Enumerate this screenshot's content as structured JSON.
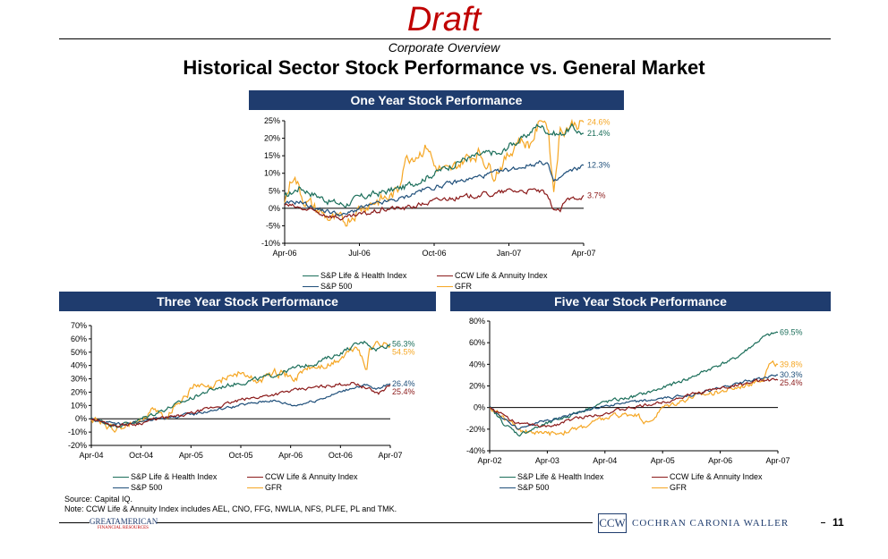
{
  "header": {
    "draft": "Draft",
    "subtitle": "Corporate Overview",
    "title": "Historical Sector Stock Performance vs. General Market"
  },
  "colors": {
    "banner": "#1f3c6e",
    "sp_life_health": "#1b6e5a",
    "ccw_life_annuity": "#8b1a1a",
    "sp500": "#1f4f7a",
    "gfr": "#f5a623"
  },
  "chart_data": [
    {
      "type": "line",
      "title": "One Year Stock Performance",
      "x_ticks": [
        "Apr-06",
        "Jul-06",
        "Oct-06",
        "Jan-07",
        "Apr-07"
      ],
      "y_ticks": [
        "-10%",
        "-5%",
        "0%",
        "5%",
        "10%",
        "15%",
        "20%",
        "25%"
      ],
      "ylim": [
        -10,
        25
      ],
      "grid": false,
      "legend_position": "bottom",
      "series": [
        {
          "name": "S&P Life & Health Index",
          "color": "#1b6e5a",
          "end_label": "21.4%",
          "end": 21.4,
          "vol": 1.2,
          "anchors": [
            [
              0,
              3
            ],
            [
              0.05,
              6
            ],
            [
              0.1,
              4
            ],
            [
              0.15,
              2
            ],
            [
              0.2,
              1
            ],
            [
              0.25,
              3
            ],
            [
              0.3,
              4
            ],
            [
              0.35,
              5
            ],
            [
              0.4,
              6
            ],
            [
              0.45,
              8
            ],
            [
              0.5,
              10
            ],
            [
              0.55,
              12
            ],
            [
              0.6,
              14
            ],
            [
              0.65,
              15
            ],
            [
              0.7,
              16
            ],
            [
              0.72,
              15
            ],
            [
              0.75,
              18
            ],
            [
              0.8,
              20
            ],
            [
              0.85,
              24
            ],
            [
              0.88,
              22
            ],
            [
              0.92,
              21
            ],
            [
              0.96,
              23
            ],
            [
              1,
              21.4
            ]
          ]
        },
        {
          "name": "CCW Life & Annuity Index",
          "color": "#8b1a1a",
          "end_label": "3.7%",
          "end": 3.7,
          "vol": 0.9,
          "anchors": [
            [
              0,
              1
            ],
            [
              0.05,
              0
            ],
            [
              0.1,
              -1
            ],
            [
              0.15,
              -2
            ],
            [
              0.2,
              -3
            ],
            [
              0.25,
              -2
            ],
            [
              0.3,
              -1
            ],
            [
              0.35,
              0
            ],
            [
              0.4,
              0
            ],
            [
              0.45,
              1
            ],
            [
              0.5,
              2
            ],
            [
              0.55,
              3
            ],
            [
              0.6,
              3
            ],
            [
              0.65,
              4
            ],
            [
              0.7,
              4
            ],
            [
              0.75,
              5
            ],
            [
              0.8,
              5
            ],
            [
              0.85,
              5
            ],
            [
              0.87,
              4
            ],
            [
              0.9,
              0
            ],
            [
              0.92,
              -1
            ],
            [
              0.94,
              2
            ],
            [
              0.97,
              3
            ],
            [
              1,
              3.7
            ]
          ]
        },
        {
          "name": "S&P 500",
          "color": "#1f4f7a",
          "end_label": "12.3%",
          "end": 12.3,
          "vol": 0.8,
          "anchors": [
            [
              0,
              1
            ],
            [
              0.05,
              2
            ],
            [
              0.1,
              0
            ],
            [
              0.15,
              -1
            ],
            [
              0.2,
              -2
            ],
            [
              0.25,
              0
            ],
            [
              0.3,
              1
            ],
            [
              0.35,
              2
            ],
            [
              0.4,
              3
            ],
            [
              0.45,
              5
            ],
            [
              0.5,
              6
            ],
            [
              0.55,
              7
            ],
            [
              0.6,
              8
            ],
            [
              0.65,
              9
            ],
            [
              0.7,
              10
            ],
            [
              0.75,
              11
            ],
            [
              0.8,
              12
            ],
            [
              0.85,
              13
            ],
            [
              0.88,
              13
            ],
            [
              0.9,
              7
            ],
            [
              0.94,
              10
            ],
            [
              0.97,
              11
            ],
            [
              1,
              12.3
            ]
          ]
        },
        {
          "name": "GFR",
          "color": "#f5a623",
          "end_label": "24.6%",
          "end": 24.6,
          "vol": 2.2,
          "anchors": [
            [
              0,
              2
            ],
            [
              0.03,
              10
            ],
            [
              0.06,
              3
            ],
            [
              0.1,
              0
            ],
            [
              0.15,
              -3
            ],
            [
              0.2,
              -4
            ],
            [
              0.25,
              0
            ],
            [
              0.3,
              2
            ],
            [
              0.35,
              3
            ],
            [
              0.38,
              5
            ],
            [
              0.4,
              14
            ],
            [
              0.45,
              16
            ],
            [
              0.48,
              18
            ],
            [
              0.5,
              12
            ],
            [
              0.55,
              10
            ],
            [
              0.6,
              14
            ],
            [
              0.65,
              16
            ],
            [
              0.7,
              10
            ],
            [
              0.75,
              15
            ],
            [
              0.78,
              20
            ],
            [
              0.82,
              18
            ],
            [
              0.86,
              26
            ],
            [
              0.88,
              24
            ],
            [
              0.9,
              5
            ],
            [
              0.92,
              22
            ],
            [
              0.96,
              24
            ],
            [
              1,
              24.6
            ]
          ]
        }
      ]
    },
    {
      "type": "line",
      "title": "Three Year Stock Performance",
      "x_ticks": [
        "Apr-04",
        "Oct-04",
        "Apr-05",
        "Oct-05",
        "Apr-06",
        "Oct-06",
        "Apr-07"
      ],
      "y_ticks": [
        "-20%",
        "-10%",
        "0%",
        "10%",
        "20%",
        "30%",
        "40%",
        "50%",
        "60%",
        "70%"
      ],
      "ylim": [
        -20,
        70
      ],
      "grid": false,
      "legend_position": "bottom",
      "series": [
        {
          "name": "S&P Life & Health Index",
          "color": "#1b6e5a",
          "end_label": "56.3%",
          "end": 56.3,
          "vol": 2,
          "anchors": [
            [
              0,
              0
            ],
            [
              0.08,
              -5
            ],
            [
              0.15,
              -2
            ],
            [
              0.22,
              5
            ],
            [
              0.3,
              12
            ],
            [
              0.38,
              20
            ],
            [
              0.45,
              25
            ],
            [
              0.52,
              28
            ],
            [
              0.6,
              32
            ],
            [
              0.68,
              38
            ],
            [
              0.75,
              42
            ],
            [
              0.82,
              48
            ],
            [
              0.88,
              55
            ],
            [
              0.92,
              58
            ],
            [
              0.95,
              52
            ],
            [
              1,
              56.3
            ]
          ]
        },
        {
          "name": "CCW Life & Annuity Index",
          "color": "#8b1a1a",
          "end_label": "25.4%",
          "end": 25.4,
          "vol": 1.5,
          "anchors": [
            [
              0,
              0
            ],
            [
              0.08,
              -5
            ],
            [
              0.15,
              -4
            ],
            [
              0.22,
              0
            ],
            [
              0.3,
              2
            ],
            [
              0.4,
              8
            ],
            [
              0.5,
              14
            ],
            [
              0.6,
              18
            ],
            [
              0.7,
              22
            ],
            [
              0.8,
              25
            ],
            [
              0.88,
              27
            ],
            [
              0.93,
              22
            ],
            [
              0.96,
              19
            ],
            [
              1,
              25.4
            ]
          ]
        },
        {
          "name": "S&P 500",
          "color": "#1f4f7a",
          "end_label": "26.4%",
          "end": 26.4,
          "vol": 1.3,
          "anchors": [
            [
              0,
              0
            ],
            [
              0.08,
              -4
            ],
            [
              0.15,
              -3
            ],
            [
              0.22,
              0
            ],
            [
              0.3,
              2
            ],
            [
              0.4,
              6
            ],
            [
              0.5,
              10
            ],
            [
              0.6,
              14
            ],
            [
              0.68,
              10
            ],
            [
              0.75,
              14
            ],
            [
              0.82,
              19
            ],
            [
              0.88,
              24
            ],
            [
              0.92,
              25
            ],
            [
              0.95,
              22
            ],
            [
              1,
              26.4
            ]
          ]
        },
        {
          "name": "GFR",
          "color": "#f5a623",
          "end_label": "54.5%",
          "end": 54.5,
          "vol": 3.5,
          "anchors": [
            [
              0,
              0
            ],
            [
              0.08,
              -8
            ],
            [
              0.15,
              -2
            ],
            [
              0.2,
              5
            ],
            [
              0.25,
              2
            ],
            [
              0.3,
              15
            ],
            [
              0.35,
              25
            ],
            [
              0.4,
              22
            ],
            [
              0.45,
              32
            ],
            [
              0.5,
              35
            ],
            [
              0.55,
              28
            ],
            [
              0.62,
              35
            ],
            [
              0.68,
              30
            ],
            [
              0.72,
              38
            ],
            [
              0.8,
              40
            ],
            [
              0.85,
              48
            ],
            [
              0.89,
              55
            ],
            [
              0.92,
              35
            ],
            [
              0.93,
              55
            ],
            [
              0.96,
              57
            ],
            [
              1,
              54.5
            ]
          ]
        }
      ]
    },
    {
      "type": "line",
      "title": "Five Year Stock Performance",
      "x_ticks": [
        "Apr-02",
        "Apr-03",
        "Apr-04",
        "Apr-05",
        "Apr-06",
        "Apr-07"
      ],
      "y_ticks": [
        "-40%",
        "-20%",
        "0%",
        "20%",
        "40%",
        "60%",
        "80%"
      ],
      "ylim": [
        -40,
        80
      ],
      "grid": false,
      "legend_position": "bottom",
      "series": [
        {
          "name": "S&P Life & Health Index",
          "color": "#1b6e5a",
          "end_label": "69.5%",
          "end": 69.5,
          "vol": 2,
          "anchors": [
            [
              0,
              0
            ],
            [
              0.05,
              -15
            ],
            [
              0.1,
              -25
            ],
            [
              0.15,
              -20
            ],
            [
              0.2,
              -15
            ],
            [
              0.3,
              -5
            ],
            [
              0.4,
              5
            ],
            [
              0.5,
              10
            ],
            [
              0.6,
              18
            ],
            [
              0.7,
              28
            ],
            [
              0.8,
              40
            ],
            [
              0.85,
              45
            ],
            [
              0.9,
              55
            ],
            [
              0.95,
              65
            ],
            [
              1,
              69.5
            ]
          ]
        },
        {
          "name": "CCW Life & Annuity Index",
          "color": "#8b1a1a",
          "end_label": "25.4%",
          "end": 25.4,
          "vol": 1.8,
          "anchors": [
            [
              0,
              0
            ],
            [
              0.1,
              -15
            ],
            [
              0.2,
              -18
            ],
            [
              0.3,
              -10
            ],
            [
              0.4,
              -5
            ],
            [
              0.5,
              0
            ],
            [
              0.6,
              5
            ],
            [
              0.7,
              12
            ],
            [
              0.8,
              18
            ],
            [
              0.88,
              22
            ],
            [
              0.95,
              25
            ],
            [
              1,
              25.4
            ]
          ]
        },
        {
          "name": "S&P 500",
          "color": "#1f4f7a",
          "end_label": "30.3%",
          "end": 30.3,
          "vol": 1.5,
          "anchors": [
            [
              0,
              0
            ],
            [
              0.05,
              -10
            ],
            [
              0.1,
              -20
            ],
            [
              0.15,
              -15
            ],
            [
              0.2,
              -12
            ],
            [
              0.3,
              -5
            ],
            [
              0.4,
              2
            ],
            [
              0.5,
              5
            ],
            [
              0.6,
              8
            ],
            [
              0.7,
              12
            ],
            [
              0.8,
              18
            ],
            [
              0.9,
              25
            ],
            [
              1,
              30.3
            ]
          ]
        },
        {
          "name": "GFR",
          "color": "#f5a623",
          "end_label": "39.8%",
          "end": 39.8,
          "vol": 3,
          "anchors": [
            [
              0,
              0
            ],
            [
              0.05,
              -10
            ],
            [
              0.1,
              -20
            ],
            [
              0.2,
              -25
            ],
            [
              0.3,
              -20
            ],
            [
              0.4,
              -10
            ],
            [
              0.5,
              -5
            ],
            [
              0.55,
              -15
            ],
            [
              0.6,
              0
            ],
            [
              0.65,
              5
            ],
            [
              0.7,
              10
            ],
            [
              0.8,
              15
            ],
            [
              0.85,
              18
            ],
            [
              0.9,
              22
            ],
            [
              0.95,
              28
            ],
            [
              0.97,
              40
            ],
            [
              1,
              39.8
            ]
          ]
        }
      ]
    }
  ],
  "footer": {
    "source": "Source:  Capital IQ.",
    "note": "Note:  CCW Life & Annuity Index includes AEL, CNO, FFG, NWLIA, NFS, PLFE, PL and TMK.",
    "left_logo": "GREATAMERICAN",
    "left_logo_tag": "FINANCIAL RESOURCES",
    "right_logo_mark": "CCW",
    "right_logo_name": "COCHRAN CARONIA WALLER",
    "page_number": "11"
  }
}
